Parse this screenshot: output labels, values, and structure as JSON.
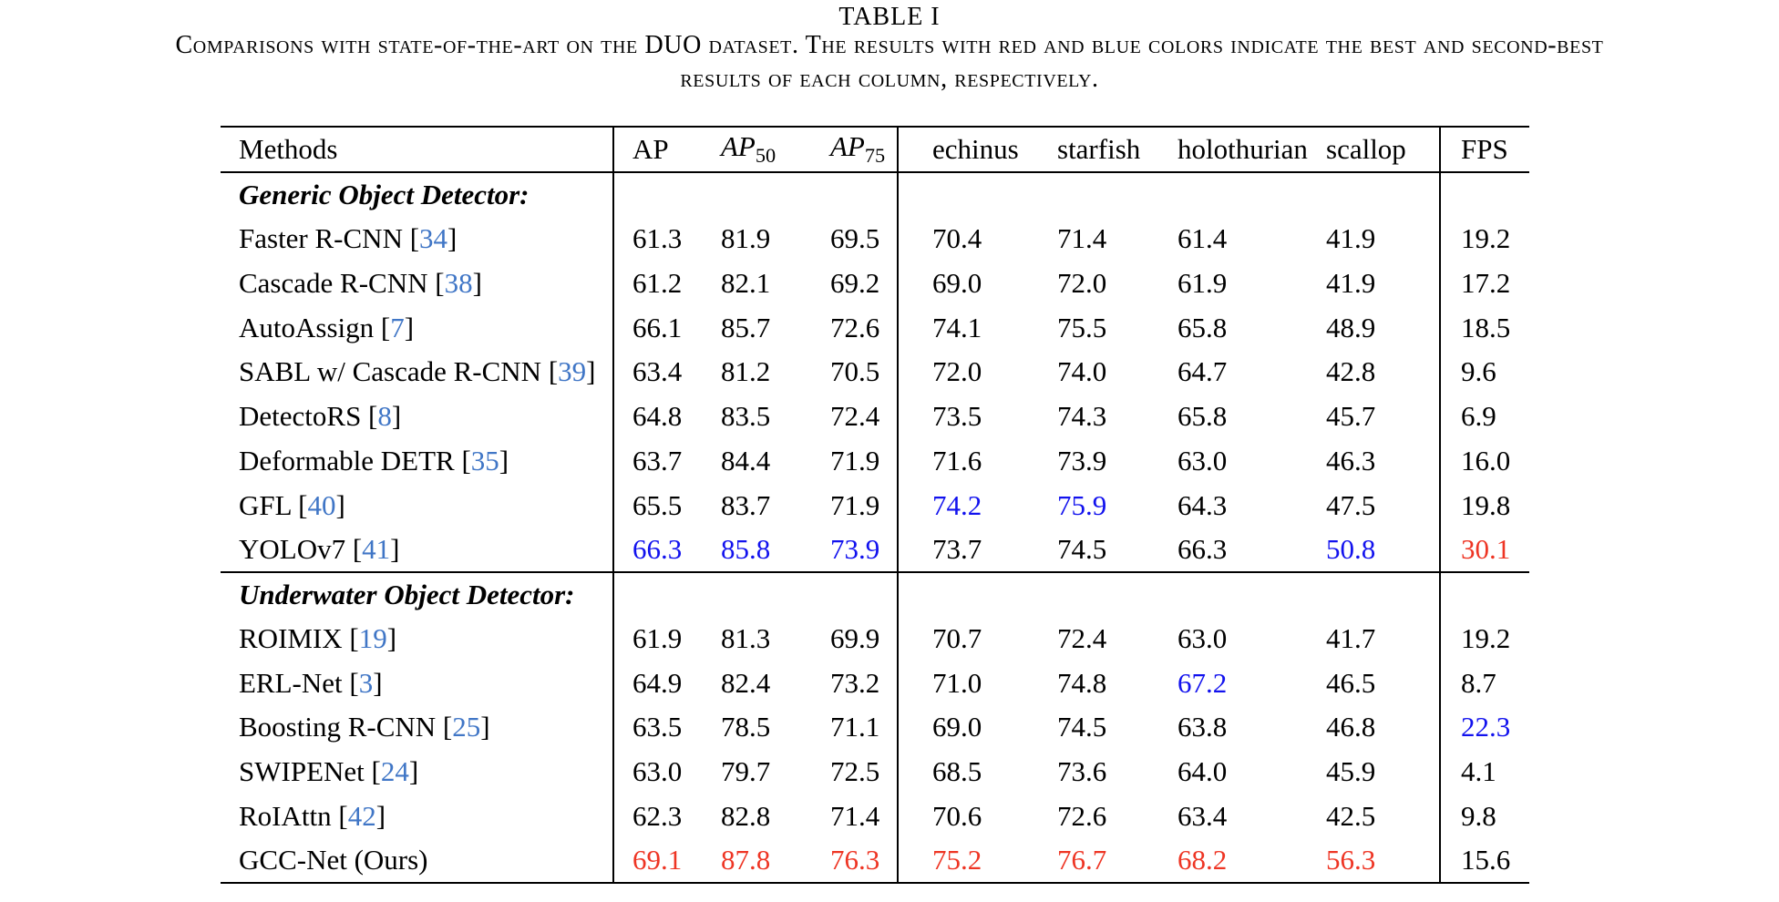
{
  "title": "TABLE I",
  "caption_line1": "Comparisons with state-of-the-art on the DUO dataset. The results with red and blue colors indicate the best and second-best",
  "caption_line2": "results of each column, respectively.",
  "colors": {
    "best": "#ee3524",
    "second_best": "#1212ee",
    "citation": "#4076c6"
  },
  "table": {
    "columns": [
      {
        "label": "Methods"
      },
      {
        "label": "AP"
      },
      {
        "label": "AP",
        "sub": "50"
      },
      {
        "label": "AP",
        "sub": "75"
      },
      {
        "label": "echinus"
      },
      {
        "label": "starfish"
      },
      {
        "label": "holothurian"
      },
      {
        "label": "scallop"
      },
      {
        "label": "FPS"
      }
    ],
    "sections": [
      {
        "label": "Generic Object Detector:",
        "rows": [
          {
            "method": "Faster R-CNN",
            "cite": "34",
            "values": [
              "61.3",
              "81.9",
              "69.5",
              "70.4",
              "71.4",
              "61.4",
              "41.9",
              "19.2"
            ],
            "colors": {}
          },
          {
            "method": "Cascade R-CNN",
            "cite": "38",
            "values": [
              "61.2",
              "82.1",
              "69.2",
              "69.0",
              "72.0",
              "61.9",
              "41.9",
              "17.2"
            ],
            "colors": {}
          },
          {
            "method": "AutoAssign",
            "cite": "7",
            "values": [
              "66.1",
              "85.7",
              "72.6",
              "74.1",
              "75.5",
              "65.8",
              "48.9",
              "18.5"
            ],
            "colors": {}
          },
          {
            "method": "SABL w/ Cascade R-CNN",
            "cite": "39",
            "values": [
              "63.4",
              "81.2",
              "70.5",
              "72.0",
              "74.0",
              "64.7",
              "42.8",
              "9.6"
            ],
            "colors": {}
          },
          {
            "method": "DetectoRS",
            "cite": "8",
            "values": [
              "64.8",
              "83.5",
              "72.4",
              "73.5",
              "74.3",
              "65.8",
              "45.7",
              "6.9"
            ],
            "colors": {}
          },
          {
            "method": "Deformable DETR",
            "cite": "35",
            "values": [
              "63.7",
              "84.4",
              "71.9",
              "71.6",
              "73.9",
              "63.0",
              "46.3",
              "16.0"
            ],
            "colors": {}
          },
          {
            "method": "GFL",
            "cite": "40",
            "values": [
              "65.5",
              "83.7",
              "71.9",
              "74.2",
              "75.9",
              "64.3",
              "47.5",
              "19.8"
            ],
            "colors": {
              "3": "blue",
              "4": "blue"
            }
          },
          {
            "method": "YOLOv7",
            "cite": "41",
            "values": [
              "66.3",
              "85.8",
              "73.9",
              "73.7",
              "74.5",
              "66.3",
              "50.8",
              "30.1"
            ],
            "colors": {
              "0": "blue",
              "1": "blue",
              "2": "blue",
              "6": "blue",
              "7": "red"
            }
          }
        ]
      },
      {
        "label": "Underwater Object Detector:",
        "rows": [
          {
            "method": "ROIMIX",
            "cite": "19",
            "values": [
              "61.9",
              "81.3",
              "69.9",
              "70.7",
              "72.4",
              "63.0",
              "41.7",
              "19.2"
            ],
            "colors": {}
          },
          {
            "method": "ERL-Net",
            "cite": "3",
            "values": [
              "64.9",
              "82.4",
              "73.2",
              "71.0",
              "74.8",
              "67.2",
              "46.5",
              "8.7"
            ],
            "colors": {
              "5": "blue"
            }
          },
          {
            "method": "Boosting R-CNN",
            "cite": "25",
            "values": [
              "63.5",
              "78.5",
              "71.1",
              "69.0",
              "74.5",
              "63.8",
              "46.8",
              "22.3"
            ],
            "colors": {
              "7": "blue"
            }
          },
          {
            "method": "SWIPENet",
            "cite": "24",
            "values": [
              "63.0",
              "79.7",
              "72.5",
              "68.5",
              "73.6",
              "64.0",
              "45.9",
              "4.1"
            ],
            "colors": {}
          },
          {
            "method": "RoIAttn",
            "cite": "42",
            "values": [
              "62.3",
              "82.8",
              "71.4",
              "70.6",
              "72.6",
              "63.4",
              "42.5",
              "9.8"
            ],
            "colors": {}
          },
          {
            "method": "GCC-Net (Ours)",
            "cite": null,
            "values": [
              "69.1",
              "87.8",
              "76.3",
              "75.2",
              "76.7",
              "68.2",
              "56.3",
              "15.6"
            ],
            "colors": {
              "0": "red",
              "1": "red",
              "2": "red",
              "3": "red",
              "4": "red",
              "5": "red",
              "6": "red"
            }
          }
        ]
      }
    ]
  }
}
